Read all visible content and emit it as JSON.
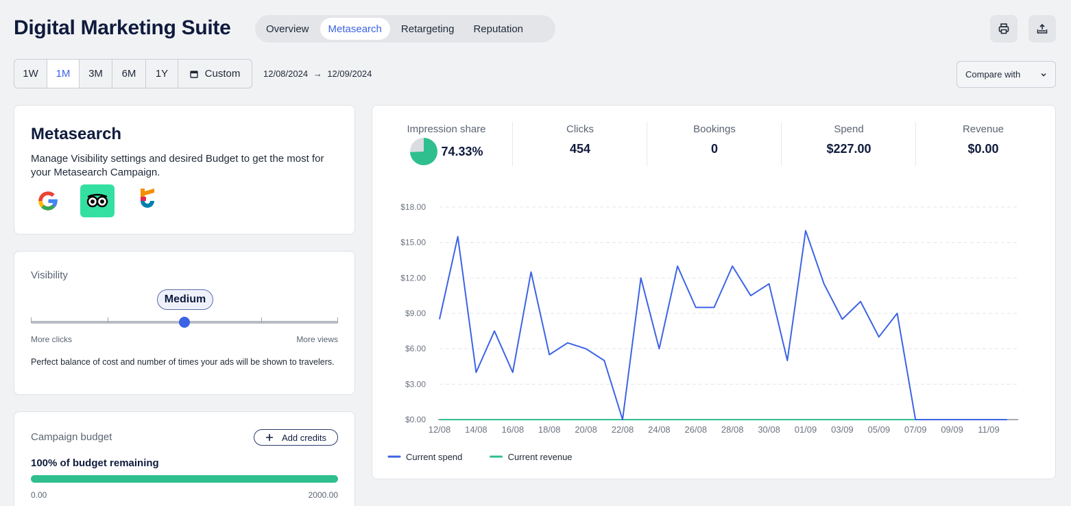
{
  "header": {
    "title": "Digital Marketing Suite",
    "tabs": [
      {
        "label": "Overview",
        "active": false
      },
      {
        "label": "Metasearch",
        "active": true
      },
      {
        "label": "Retargeting",
        "active": false
      },
      {
        "label": "Reputation",
        "active": false
      }
    ],
    "icons": [
      "print-icon",
      "upload-icon"
    ]
  },
  "range": {
    "options": [
      "1W",
      "1M",
      "3M",
      "6M",
      "1Y"
    ],
    "selected": "1M",
    "custom_label": "Custom",
    "date_start": "12/08/2024",
    "date_arrow": "→",
    "date_end": "12/09/2024"
  },
  "compare": {
    "label": "Compare with"
  },
  "metasearch": {
    "title": "Metasearch",
    "description": "Manage Visibility settings and desired Budget to get the most for your Metasearch Campaign.",
    "logos": [
      "google-logo",
      "tripadvisor-logo",
      "trivago-logo"
    ]
  },
  "visibility": {
    "label": "Visibility",
    "level": "Medium",
    "level_index": 2,
    "steps": 5,
    "left_label": "More clicks",
    "right_label": "More views",
    "description": "Perfect balance of cost and number of times your ads will be shown to travelers."
  },
  "budget": {
    "label": "Campaign budget",
    "add_credits": "Add credits",
    "remaining_text": "100% of budget remaining",
    "remaining_fraction": 1.0,
    "min": "0.00",
    "max": "2000.00"
  },
  "kpis": {
    "impression_share": {
      "label": "Impression share",
      "value": "74.33%",
      "fraction": 0.7433
    },
    "clicks": {
      "label": "Clicks",
      "value": "454"
    },
    "bookings": {
      "label": "Bookings",
      "value": "0"
    },
    "spend": {
      "label": "Spend",
      "value": "$227.00"
    },
    "revenue": {
      "label": "Revenue",
      "value": "$0.00"
    }
  },
  "colors": {
    "accent": "#3b63e6",
    "green": "#2fbf8f",
    "spend": "#3b63e6",
    "revenue": "#2fbf8f"
  },
  "chart_data": {
    "type": "line",
    "x": [
      "12/08",
      "13/08",
      "14/08",
      "15/08",
      "16/08",
      "17/08",
      "18/08",
      "19/08",
      "20/08",
      "21/08",
      "22/08",
      "23/08",
      "24/08",
      "25/08",
      "26/08",
      "27/08",
      "28/08",
      "29/08",
      "30/08",
      "31/08",
      "01/09",
      "02/09",
      "03/09",
      "04/09",
      "05/09",
      "06/09",
      "07/09",
      "08/09",
      "09/09",
      "10/09",
      "11/09",
      "12/09"
    ],
    "tick_labels": [
      "12/08",
      "14/08",
      "16/08",
      "18/08",
      "20/08",
      "22/08",
      "24/08",
      "26/08",
      "28/08",
      "30/08",
      "01/09",
      "03/09",
      "05/09",
      "07/09",
      "09/09",
      "11/09"
    ],
    "y_ticks": [
      "$0.00",
      "$3.00",
      "$6.00",
      "$9.00",
      "$12.00",
      "$15.00",
      "$18.00"
    ],
    "ylim": [
      0,
      18
    ],
    "grid": true,
    "legend_position": "bottom-left",
    "series": [
      {
        "name": "Current spend",
        "color": "#3b63e6",
        "values": [
          8.5,
          15.5,
          4,
          7.5,
          4,
          12.5,
          5.5,
          6.5,
          6,
          5,
          0,
          12,
          6,
          13,
          9.5,
          9.5,
          13,
          10.5,
          11.5,
          5,
          16,
          11.5,
          8.5,
          10,
          7,
          9,
          0,
          0,
          0,
          0,
          0,
          0
        ]
      },
      {
        "name": "Current revenue",
        "color": "#2fbf8f",
        "values": [
          0,
          0,
          0,
          0,
          0,
          0,
          0,
          0,
          0,
          0,
          0,
          0,
          0,
          0,
          0,
          0,
          0,
          0,
          0,
          0,
          0,
          0,
          0,
          0,
          0,
          0,
          0,
          0,
          0,
          0,
          0,
          0
        ]
      }
    ]
  }
}
